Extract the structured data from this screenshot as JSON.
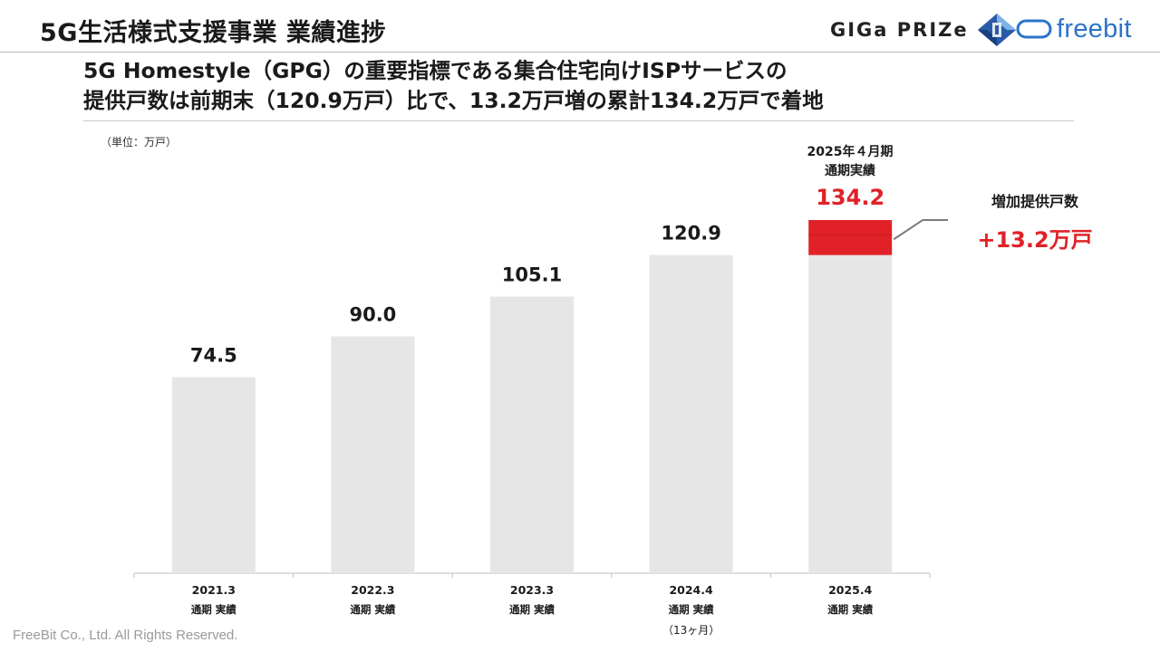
{
  "header": {
    "title": "5G生活様式支援事業 業績進捗"
  },
  "logos": {
    "gigaprize": "GIGa PRIZe",
    "freebit": "freebit"
  },
  "headline": {
    "line1": "5G Homestyle（GPG）の重要指標である集合住宅向けISPサービスの",
    "line2": "提供戸数は前期末（120.9万戸）比で、13.2万戸増の累計134.2万戸で着地"
  },
  "unit_label": "（単位：万戸）",
  "callouts": {
    "period_line1": "2025年４月期",
    "period_line2": "通期実績",
    "increase_label": "増加提供戸数",
    "increase_value": "+13.2万戸"
  },
  "colors": {
    "bar": "#e6e6e6",
    "highlight": "#e02228",
    "axis": "#bfbfbf",
    "text": "#1a1a1a"
  },
  "chart_data": {
    "type": "bar",
    "categories": [
      "2021.3",
      "2022.3",
      "2023.3",
      "2024.4",
      "2025.4"
    ],
    "category_sublabels": [
      "通期 実績",
      "通期 実績",
      "通期 実績",
      "通期 実績",
      "通期 実績"
    ],
    "category_notes": [
      "",
      "",
      "",
      "（13ヶ月）",
      ""
    ],
    "values": [
      74.5,
      90.0,
      105.1,
      120.9,
      134.2
    ],
    "value_labels": [
      "74.5",
      "90.0",
      "105.1",
      "120.9",
      "134.2"
    ],
    "increment": {
      "category": "2025.4",
      "from": 120.9,
      "to": 134.2,
      "value": 13.2
    },
    "ylim": [
      0,
      134.2
    ],
    "grid": false,
    "legend": "none"
  },
  "footer": "FreeBit Co., Ltd. All Rights Reserved."
}
